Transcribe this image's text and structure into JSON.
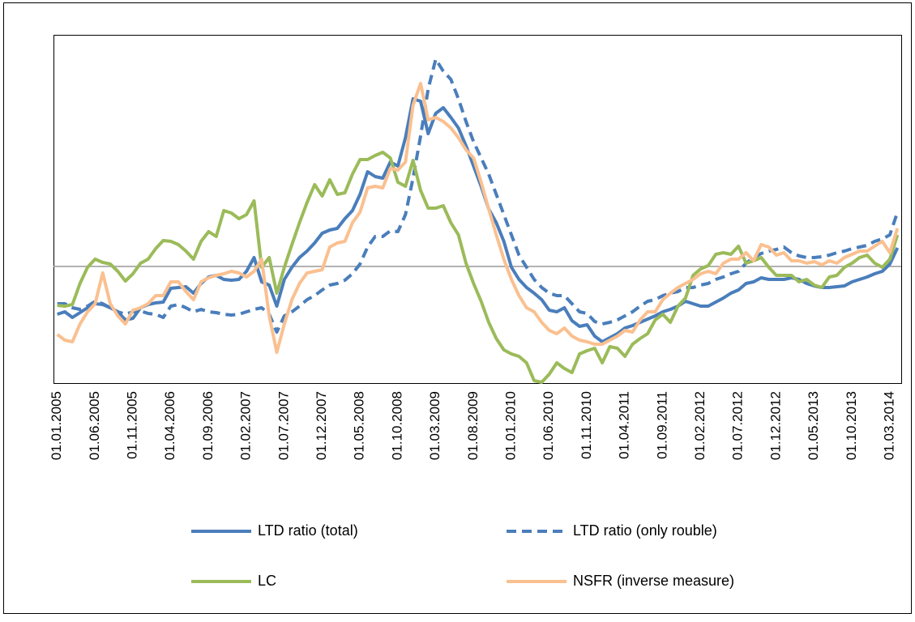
{
  "chart_data": {
    "type": "line",
    "categories": [
      "01.01.2005",
      null,
      null,
      null,
      null,
      "01.06.2005",
      null,
      null,
      null,
      null,
      "01.11.2005",
      null,
      null,
      null,
      null,
      "01.04.2006",
      null,
      null,
      null,
      null,
      "01.09.2006",
      null,
      null,
      null,
      null,
      "01.02.2007",
      null,
      null,
      null,
      null,
      "01.07.2007",
      null,
      null,
      null,
      null,
      "01.12.2007",
      null,
      null,
      null,
      null,
      "01.05.2008",
      null,
      null,
      null,
      null,
      "01.10.2008",
      null,
      null,
      null,
      null,
      "01.03.2009",
      null,
      null,
      null,
      null,
      "01.08.2009",
      null,
      null,
      null,
      null,
      "01.01.2010",
      null,
      null,
      null,
      null,
      "01.06.2010",
      null,
      null,
      null,
      null,
      "01.11.2010",
      null,
      null,
      null,
      null,
      "01.04.2011",
      null,
      null,
      null,
      null,
      "01.09.2011",
      null,
      null,
      null,
      null,
      "01.02.2012",
      null,
      null,
      null,
      null,
      "01.07.2012",
      null,
      null,
      null,
      null,
      "01.12.2012",
      null,
      null,
      null,
      null,
      "01.05.2013",
      null,
      null,
      null,
      null,
      "01.10.2013",
      null,
      null,
      null,
      null,
      "01.03.2014",
      null
    ],
    "series": [
      {
        "name": "LTD ratio (total)",
        "color": "#4a7ebb",
        "dashed": false,
        "values": [
          -59,
          -56,
          -63,
          -57,
          -51,
          -46,
          -47,
          -51,
          -56,
          -66,
          -64,
          -51,
          -47,
          -45,
          -44,
          -27,
          -26,
          -25,
          -33,
          -21,
          -13,
          -11,
          -16,
          -17,
          -16,
          -6,
          11,
          -19,
          -23,
          -49,
          -16,
          -1,
          11,
          19,
          29,
          41,
          45,
          47,
          59,
          69,
          89,
          117,
          111,
          109,
          129,
          124,
          159,
          207,
          204,
          164,
          189,
          196,
          184,
          171,
          149,
          124,
          99,
          71,
          54,
          31,
          -1,
          -16,
          -26,
          -33,
          -41,
          -54,
          -56,
          -51,
          -67,
          -74,
          -72,
          -86,
          -93,
          -88,
          -83,
          -76,
          -73,
          -69,
          -65,
          -61,
          -56,
          -53,
          -49,
          -43,
          -46,
          -49,
          -49,
          -44,
          -39,
          -33,
          -29,
          -21,
          -19,
          -14,
          -16,
          -16,
          -16,
          -14,
          -16,
          -21,
          -24,
          -26,
          -26,
          -25,
          -24,
          -19,
          -16,
          -13,
          -9,
          -6,
          3,
          23
        ]
      },
      {
        "name": "LTD ratio (only rouble)",
        "color": "#4a7ebb",
        "dashed": true,
        "values": [
          -46,
          -46,
          -51,
          -53,
          -49,
          -43,
          -46,
          -51,
          -56,
          -59,
          -56,
          -55,
          -58,
          -59,
          -63,
          -49,
          -47,
          -51,
          -56,
          -53,
          -56,
          -57,
          -59,
          -60,
          -59,
          -56,
          -53,
          -51,
          -59,
          -81,
          -61,
          -56,
          -49,
          -41,
          -36,
          -29,
          -23,
          -21,
          -17,
          -9,
          3,
          24,
          37,
          37,
          44,
          43,
          64,
          109,
          161,
          219,
          256,
          241,
          231,
          207,
          179,
          154,
          134,
          114,
          89,
          64,
          39,
          14,
          -1,
          -16,
          -26,
          -33,
          -36,
          -36,
          -46,
          -56,
          -58,
          -68,
          -71,
          -69,
          -66,
          -61,
          -56,
          -49,
          -43,
          -41,
          -36,
          -33,
          -31,
          -26,
          -26,
          -23,
          -21,
          -16,
          -13,
          -9,
          -6,
          4,
          11,
          16,
          19,
          21,
          24,
          17,
          13,
          11,
          11,
          12,
          14,
          17,
          19,
          22,
          24,
          26,
          31,
          34,
          39,
          67
        ]
      },
      {
        "name": "LC",
        "color": "#9bbb59",
        "dashed": false,
        "values": [
          -48,
          -49,
          -47,
          -21,
          -1,
          9,
          5,
          3,
          -6,
          -18,
          -9,
          4,
          9,
          22,
          32,
          31,
          27,
          19,
          9,
          31,
          43,
          37,
          69,
          66,
          59,
          64,
          81,
          -1,
          11,
          -33,
          -1,
          27,
          54,
          79,
          101,
          87,
          107,
          89,
          91,
          114,
          132,
          132,
          137,
          141,
          134,
          104,
          99,
          131,
          94,
          72,
          72,
          75,
          54,
          39,
          4,
          -21,
          -43,
          -69,
          -89,
          -103,
          -108,
          -111,
          -119,
          -141,
          -143,
          -133,
          -119,
          -126,
          -131,
          -108,
          -104,
          -101,
          -119,
          -99,
          -101,
          -111,
          -96,
          -89,
          -83,
          -66,
          -59,
          -69,
          -49,
          -39,
          -11,
          -3,
          1,
          15,
          17,
          15,
          25,
          4,
          7,
          11,
          -1,
          -11,
          -11,
          -11,
          -19,
          -16,
          -23,
          -26,
          -13,
          -11,
          -1,
          4,
          11,
          14,
          4,
          -1,
          9,
          39
        ]
      },
      {
        "name": "NSFR (inverse measure)",
        "color": "#fac090",
        "dashed": false,
        "values": [
          -84,
          -91,
          -93,
          -71,
          -56,
          -46,
          -8,
          -46,
          -61,
          -71,
          -54,
          -51,
          -46,
          -36,
          -36,
          -19,
          -19,
          -31,
          -41,
          -19,
          -14,
          -11,
          -9,
          -6,
          -8,
          -13,
          -6,
          9,
          -61,
          -106,
          -71,
          -41,
          -21,
          -8,
          -6,
          -4,
          24,
          29,
          31,
          54,
          67,
          97,
          99,
          97,
          121,
          119,
          129,
          199,
          226,
          181,
          184,
          179,
          171,
          159,
          144,
          134,
          104,
          71,
          39,
          9,
          -16,
          -36,
          -51,
          -56,
          -69,
          -79,
          -83,
          -76,
          -86,
          -91,
          -93,
          -96,
          -96,
          -91,
          -86,
          -79,
          -81,
          -66,
          -56,
          -56,
          -41,
          -33,
          -26,
          -21,
          -16,
          -9,
          -6,
          -9,
          4,
          9,
          9,
          17,
          7,
          27,
          24,
          14,
          17,
          7,
          7,
          4,
          6,
          2,
          7,
          4,
          11,
          15,
          19,
          19,
          25,
          31,
          17,
          47
        ]
      }
    ],
    "ylim": [
      -144,
      286
    ],
    "yticks": [
      0
    ],
    "legend": "bottom"
  }
}
